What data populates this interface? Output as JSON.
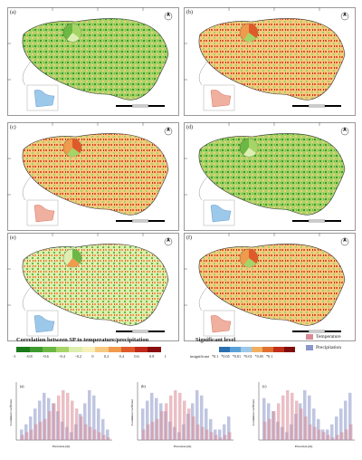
{
  "panels": [
    {
      "label": "(a)",
      "tone": "green"
    },
    {
      "label": "(b)",
      "tone": "red"
    },
    {
      "label": "(c)",
      "tone": "red"
    },
    {
      "label": "(d)",
      "tone": "green"
    },
    {
      "label": "(e)",
      "tone": "mixed"
    },
    {
      "label": "(f)",
      "tone": "red"
    }
  ],
  "legend": {
    "title": "Correlation between SP to temperature/precipitation",
    "colors": [
      "#1a7a1a",
      "#3d9a2e",
      "#6cb844",
      "#a6d467",
      "#dcefb0",
      "#f7f0b8",
      "#f6c980",
      "#ef9a4c",
      "#df5a2a",
      "#c02a1a",
      "#8a0d0d"
    ],
    "ticks": [
      "-1",
      "-0.8",
      "-0.6",
      "-0.4",
      "-0.2",
      "0",
      "0.2",
      "0.4",
      "0.6",
      "0.8",
      "1"
    ]
  },
  "significance": {
    "title": "Significant level",
    "colors": [
      "#2a6fb0",
      "#5aa0d8",
      "#9cc8ea",
      "#f0b060",
      "#e07030",
      "#c03018",
      "#800c0c"
    ],
    "labels": [
      "insignificant",
      "*0.1",
      "*0.05",
      "*0.01",
      "*0.01",
      "*0.05",
      "*0.1"
    ]
  },
  "series_key": {
    "temperature": {
      "label": "Temperature",
      "color": "#d88a96"
    },
    "precipitation": {
      "label": "Precipitation",
      "color": "#8c97c9"
    }
  },
  "histograms": [
    {
      "label": "(a)",
      "xlabel": "Elevation (m)",
      "ylabel": "Correlation coefficient"
    },
    {
      "label": "(b)",
      "xlabel": "Elevation (m)",
      "ylabel": "Correlation coefficient"
    },
    {
      "label": "(c)",
      "xlabel": "Elevation (m)",
      "ylabel": "Correlation coefficient"
    }
  ]
}
